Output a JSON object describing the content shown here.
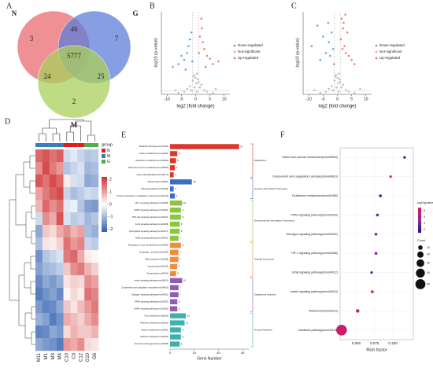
{
  "chart_data": [
    {
      "type": "venn",
      "panel": "A",
      "sets": [
        "N",
        "G",
        "M"
      ],
      "colors": [
        "#ea6b70",
        "#5d7fd8",
        "#a9cf5b"
      ],
      "values": [
        3,
        46,
        7,
        5777,
        24,
        25,
        2
      ]
    },
    {
      "type": "scatter",
      "panel": "B",
      "xlabel": "log2 (fold change)",
      "ylabel": "-log10 (p-value)",
      "xlim": [
        -12,
        12
      ],
      "xticks": [
        -10,
        -5,
        0,
        5,
        10
      ],
      "ylim": [
        0,
        60
      ],
      "series": [
        {
          "name": "Down-regulated",
          "color": "#5b8fd6",
          "x": [
            -8,
            -6,
            -5,
            -4,
            -3,
            -2.5,
            -2,
            -1.5,
            -3.5,
            -1.2
          ],
          "values": [
            20,
            22,
            28,
            25,
            30,
            35,
            40,
            45,
            18,
            24
          ]
        },
        {
          "name": "Not-significant",
          "color": "#b4b4b4",
          "x": [
            -4,
            -3,
            -2,
            -1.5,
            -1,
            -0.5,
            0,
            0.5,
            1,
            1.5,
            2,
            3,
            4,
            -6,
            6,
            0.2,
            -0.3,
            0.8,
            -0.8,
            0.4,
            -7,
            7
          ],
          "values": [
            2,
            4,
            6,
            3,
            10,
            14,
            12,
            15,
            9,
            5,
            7,
            3,
            2,
            1,
            1,
            8,
            5,
            11,
            13,
            2,
            3,
            4
          ]
        },
        {
          "name": "Up-regulated",
          "color": "#e86a5a",
          "x": [
            1.2,
            1.5,
            2,
            2.5,
            3,
            4,
            5,
            6,
            8,
            2.2,
            3.5
          ],
          "values": [
            30,
            42,
            55,
            38,
            33,
            28,
            26,
            22,
            24,
            48,
            20
          ]
        }
      ]
    },
    {
      "type": "scatter",
      "panel": "C",
      "xlabel": "log2 (fold change)",
      "ylabel": "-log10 (p-value)",
      "xlim": [
        -12,
        12
      ],
      "xticks": [
        -10,
        -5,
        0,
        5,
        10
      ],
      "ylim": [
        0,
        60
      ],
      "series": [
        {
          "name": "Down-regulated",
          "color": "#5b8fd6",
          "x": [
            -9,
            -7,
            -5,
            -4,
            -3,
            -2.5,
            -2,
            -1.5,
            -6,
            -1.2,
            -3.2
          ],
          "values": [
            35,
            50,
            42,
            30,
            38,
            28,
            45,
            33,
            25,
            22,
            52
          ]
        },
        {
          "name": "Not-significant",
          "color": "#b4b4b4",
          "x": [
            -4,
            -3,
            -2,
            -1.5,
            -1,
            -0.5,
            0,
            0.5,
            1,
            1.5,
            2,
            3,
            4,
            -6,
            6,
            0.2,
            -0.3,
            0.8,
            -0.8,
            0.4,
            -8,
            8
          ],
          "values": [
            2,
            4,
            6,
            3,
            10,
            14,
            12,
            15,
            9,
            5,
            7,
            3,
            2,
            1,
            1,
            8,
            5,
            11,
            13,
            2,
            3,
            4
          ]
        },
        {
          "name": "Up-regulated",
          "color": "#e86a5a",
          "x": [
            1.2,
            1.5,
            2,
            2.5,
            3,
            3.5,
            4,
            5,
            6,
            2.2,
            1.8,
            2.8
          ],
          "values": [
            40,
            55,
            48,
            35,
            30,
            45,
            28,
            25,
            22,
            52,
            33,
            58
          ]
        }
      ]
    },
    {
      "type": "heatmap",
      "panel": "D",
      "legend_title": "group",
      "groups": [
        {
          "name": "N",
          "color": "#e41a1c"
        },
        {
          "name": "M",
          "color": "#377eb8"
        },
        {
          "name": "G",
          "color": "#4daf4a"
        }
      ],
      "columns": [
        "M11",
        "M1",
        "M3",
        "M4",
        "C10",
        "C3",
        "C12",
        "G10",
        "G6"
      ],
      "column_group": [
        1,
        1,
        1,
        1,
        0,
        0,
        0,
        2,
        2
      ],
      "clim": [
        -2.2,
        2.2
      ],
      "cticks": [
        2,
        1,
        0,
        -1,
        -2
      ],
      "values": [
        [
          1.6,
          1.8,
          1.5,
          1.7,
          -0.5,
          -0.3,
          -0.6,
          -0.8,
          -0.7
        ],
        [
          1.2,
          1.9,
          1.4,
          1.1,
          -0.8,
          -0.6,
          -0.4,
          -1.0,
          -0.9
        ],
        [
          1.8,
          1.5,
          1.9,
          1.6,
          0.2,
          -0.4,
          -0.5,
          -1.2,
          -1.1
        ],
        [
          1.0,
          1.4,
          1.7,
          1.9,
          -0.6,
          -0.9,
          -0.7,
          -0.5,
          -0.6
        ],
        [
          0.8,
          1.6,
          1.2,
          1.5,
          -0.3,
          -0.2,
          -0.8,
          -1.3,
          -1.4
        ],
        [
          -0.5,
          1.2,
          0.9,
          1.8,
          -0.4,
          -0.7,
          -0.6,
          -1.0,
          -0.8
        ],
        [
          -1.2,
          0.6,
          0.4,
          0.9,
          1.2,
          0.8,
          1.0,
          -0.9,
          -1.1
        ],
        [
          -0.9,
          0.3,
          0.2,
          0.5,
          1.5,
          1.1,
          1.3,
          -0.6,
          -0.7
        ],
        [
          -1.5,
          -0.8,
          -0.6,
          -0.4,
          1.4,
          1.6,
          0.9,
          0.2,
          0.1
        ],
        [
          -1.3,
          -1.0,
          -0.9,
          -0.7,
          0.6,
          1.2,
          1.4,
          0.8,
          0.5
        ],
        [
          -1.6,
          -1.2,
          -1.4,
          -1.1,
          0.3,
          0.5,
          0.4,
          1.2,
          1.0
        ],
        [
          -1.8,
          -1.5,
          -1.3,
          -1.6,
          0.1,
          0.4,
          0.2,
          1.5,
          1.3
        ],
        [
          -1.4,
          -1.7,
          -1.6,
          -1.2,
          0.6,
          0.3,
          0.7,
          1.1,
          1.4
        ],
        [
          -1.1,
          -1.3,
          -1.8,
          -1.5,
          0.9,
          0.7,
          0.5,
          0.9,
          1.2
        ],
        [
          -1.7,
          -1.6,
          -1.2,
          -1.4,
          0.4,
          0.8,
          0.6,
          0.6,
          0.8
        ],
        [
          -1.2,
          -1.4,
          -1.5,
          -1.8,
          1.1,
          0.9,
          1.2,
          0.4,
          0.3
        ]
      ]
    },
    {
      "type": "hbar",
      "panel": "E",
      "xlabel": "Gene Number",
      "xlim": [
        0,
        65
      ],
      "xticks": [
        0,
        20,
        40,
        60
      ],
      "groups": [
        {
          "name": "Metabolism",
          "color": "#d9382b"
        },
        {
          "name": "Genetic Information Processing",
          "color": "#3a6fc4"
        },
        {
          "name": "Environmental Information Processing",
          "color": "#8cc63f"
        },
        {
          "name": "Cellular Processes",
          "color": "#f08c3a"
        },
        {
          "name": "Organismal Systems",
          "color": "#8e5bb5"
        },
        {
          "name": "Human Diseases",
          "color": "#3fb0b0"
        }
      ],
      "categories": [
        "Metabolic pathways(mmu01100)",
        "Carbon metabolism(mmu01200)",
        "Glutathione metabolism(mmu00480)",
        "Starch and sucrose metabolism(mmu00500)",
        "Fatty acid degradation(mmu00071)",
        "Ribosome(mmu03010)",
        "RNA degradation(mmu03018)",
        "Protein processing in endoplasmic reticulum(mmu04141)",
        "HIF-1 signaling pathway(mmu04066)",
        "MAPK signaling pathway(mmu04010)",
        "PI3K-Akt signaling pathway(mmu04151)",
        "FoxO signaling pathway(mmu04068)",
        "Sphingolipid signaling pathway(mmu04071)",
        "ErbB signaling pathway(mmu04012)",
        "Regulation of actin cytoskeleton(mmu04810)",
        "Autophagy - animal(mmu04140)",
        "Efferocytosis(mmu04148)",
        "Lysosome(mmu04142)",
        "Ferroptosis(mmu04216)",
        "Insulin signaling pathway(mmu04910)",
        "Complement and coagulation cascades(mmu04610)",
        "Glucagon signaling pathway(mmu04922)",
        "PPAR signaling pathway(mmu03320)",
        "AMPK signaling pathway(mmu04152)",
        "Prion disease(mmu05020)",
        "Parkinson disease(mmu05012)",
        "Insulin resistance(mmu04931)",
        "Alzheimer disease(mmu05010)",
        "Chemical carcinogenesis(mmu05208)"
      ],
      "group_index": [
        0,
        0,
        0,
        0,
        0,
        1,
        1,
        1,
        2,
        2,
        2,
        2,
        2,
        2,
        3,
        3,
        3,
        3,
        3,
        4,
        4,
        4,
        4,
        4,
        5,
        5,
        5,
        5,
        5
      ],
      "values": [
        57,
        6,
        5,
        4,
        3,
        18,
        3,
        4,
        10,
        9,
        9,
        8,
        8,
        7,
        9,
        7,
        7,
        6,
        5,
        10,
        7,
        7,
        6,
        6,
        13,
        12,
        9,
        9,
        8
      ]
    },
    {
      "type": "bubble",
      "panel": "F",
      "xlabel": "Rich factor",
      "color_title": "-log10(pvalue)",
      "size_title": "Count",
      "xlim": [
        0.028,
        0.128
      ],
      "xticks": [
        {
          "value": 0.05,
          "label": "0.050"
        },
        {
          "value": 0.075,
          "label": "0.075"
        },
        {
          "value": 0.1,
          "label": "0.100"
        }
      ],
      "categories": [
        "Starch and sucrose metabolism(mmu00500)",
        "Complement and coagulation cascades(mmu04610)",
        "Glutathione metabolism(mmu00480)",
        "PPAR signaling pathway(mmu03320)",
        "Glucagon signaling pathway(mmu04922)",
        "HIF-1 signaling pathway(mmu04066)",
        "ErbB signaling pathway(mmu04012)",
        "Insulin signaling pathway(mmu04910)",
        "Ribosome(mmu03010)",
        "Metabolic pathway(mmu01100)"
      ],
      "values": [
        0.116,
        0.097,
        0.083,
        0.079,
        0.077,
        0.077,
        0.071,
        0.072,
        0.052,
        0.03
      ],
      "counts": [
        3,
        3,
        4,
        4,
        4,
        4,
        3,
        4,
        6,
        57
      ],
      "log10p": [
        1.5,
        4.8,
        2.0,
        3.0,
        3.5,
        3.5,
        2.0,
        4.2,
        4.5,
        5.0
      ],
      "clim": [
        1.5,
        5.5
      ],
      "cticks": [
        2,
        3,
        4,
        5
      ],
      "size_legend": [
        10,
        20,
        30,
        40,
        50
      ]
    }
  ]
}
